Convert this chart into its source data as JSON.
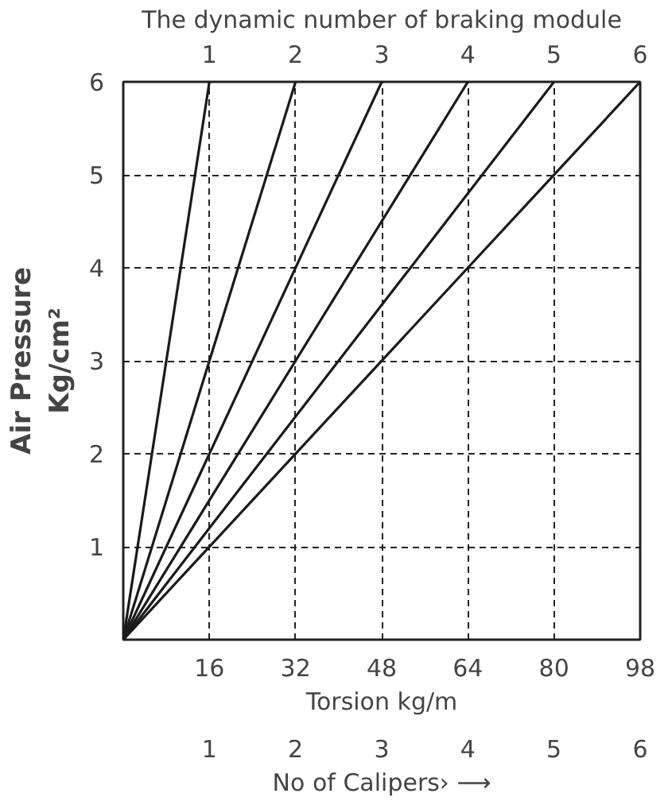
{
  "chart_data": {
    "type": "line",
    "xlabel": "No of Calipers› ⟶",
    "ylabel": "Air Pressure\nKg/cm²",
    "x2label": "The dynamic number of braking module",
    "xlim": [
      0,
      6
    ],
    "ylim": [
      0,
      6
    ],
    "x2lim": [
      0,
      6
    ],
    "xticks": [
      1,
      2,
      3,
      4,
      5,
      6
    ],
    "x2ticks": [
      1,
      2,
      3,
      4,
      5,
      6
    ],
    "yticks": [
      1,
      2,
      3,
      4,
      5,
      6
    ],
    "annotations": [
      "16",
      "32",
      "48",
      "64",
      "80",
      "98",
      "Torsion kg/m"
    ],
    "grid": true,
    "line_style": "solid",
    "series": [
      {
        "color": "#1a1a1a",
        "x": [
          0,
          1
        ],
        "values": [
          0,
          6
        ]
      },
      {
        "color": "#1a1a1a",
        "x": [
          0,
          2
        ],
        "values": [
          0,
          6
        ]
      },
      {
        "color": "#1a1a1a",
        "x": [
          0,
          3
        ],
        "values": [
          0,
          6
        ]
      },
      {
        "color": "#1a1a1a",
        "x": [
          0,
          4
        ],
        "values": [
          0,
          6
        ]
      },
      {
        "color": "#1a1a1a",
        "x": [
          0,
          5
        ],
        "values": [
          0,
          6
        ]
      },
      {
        "color": "#1a1a1a",
        "x": [
          0,
          6
        ],
        "values": [
          0,
          6
        ]
      }
    ]
  }
}
